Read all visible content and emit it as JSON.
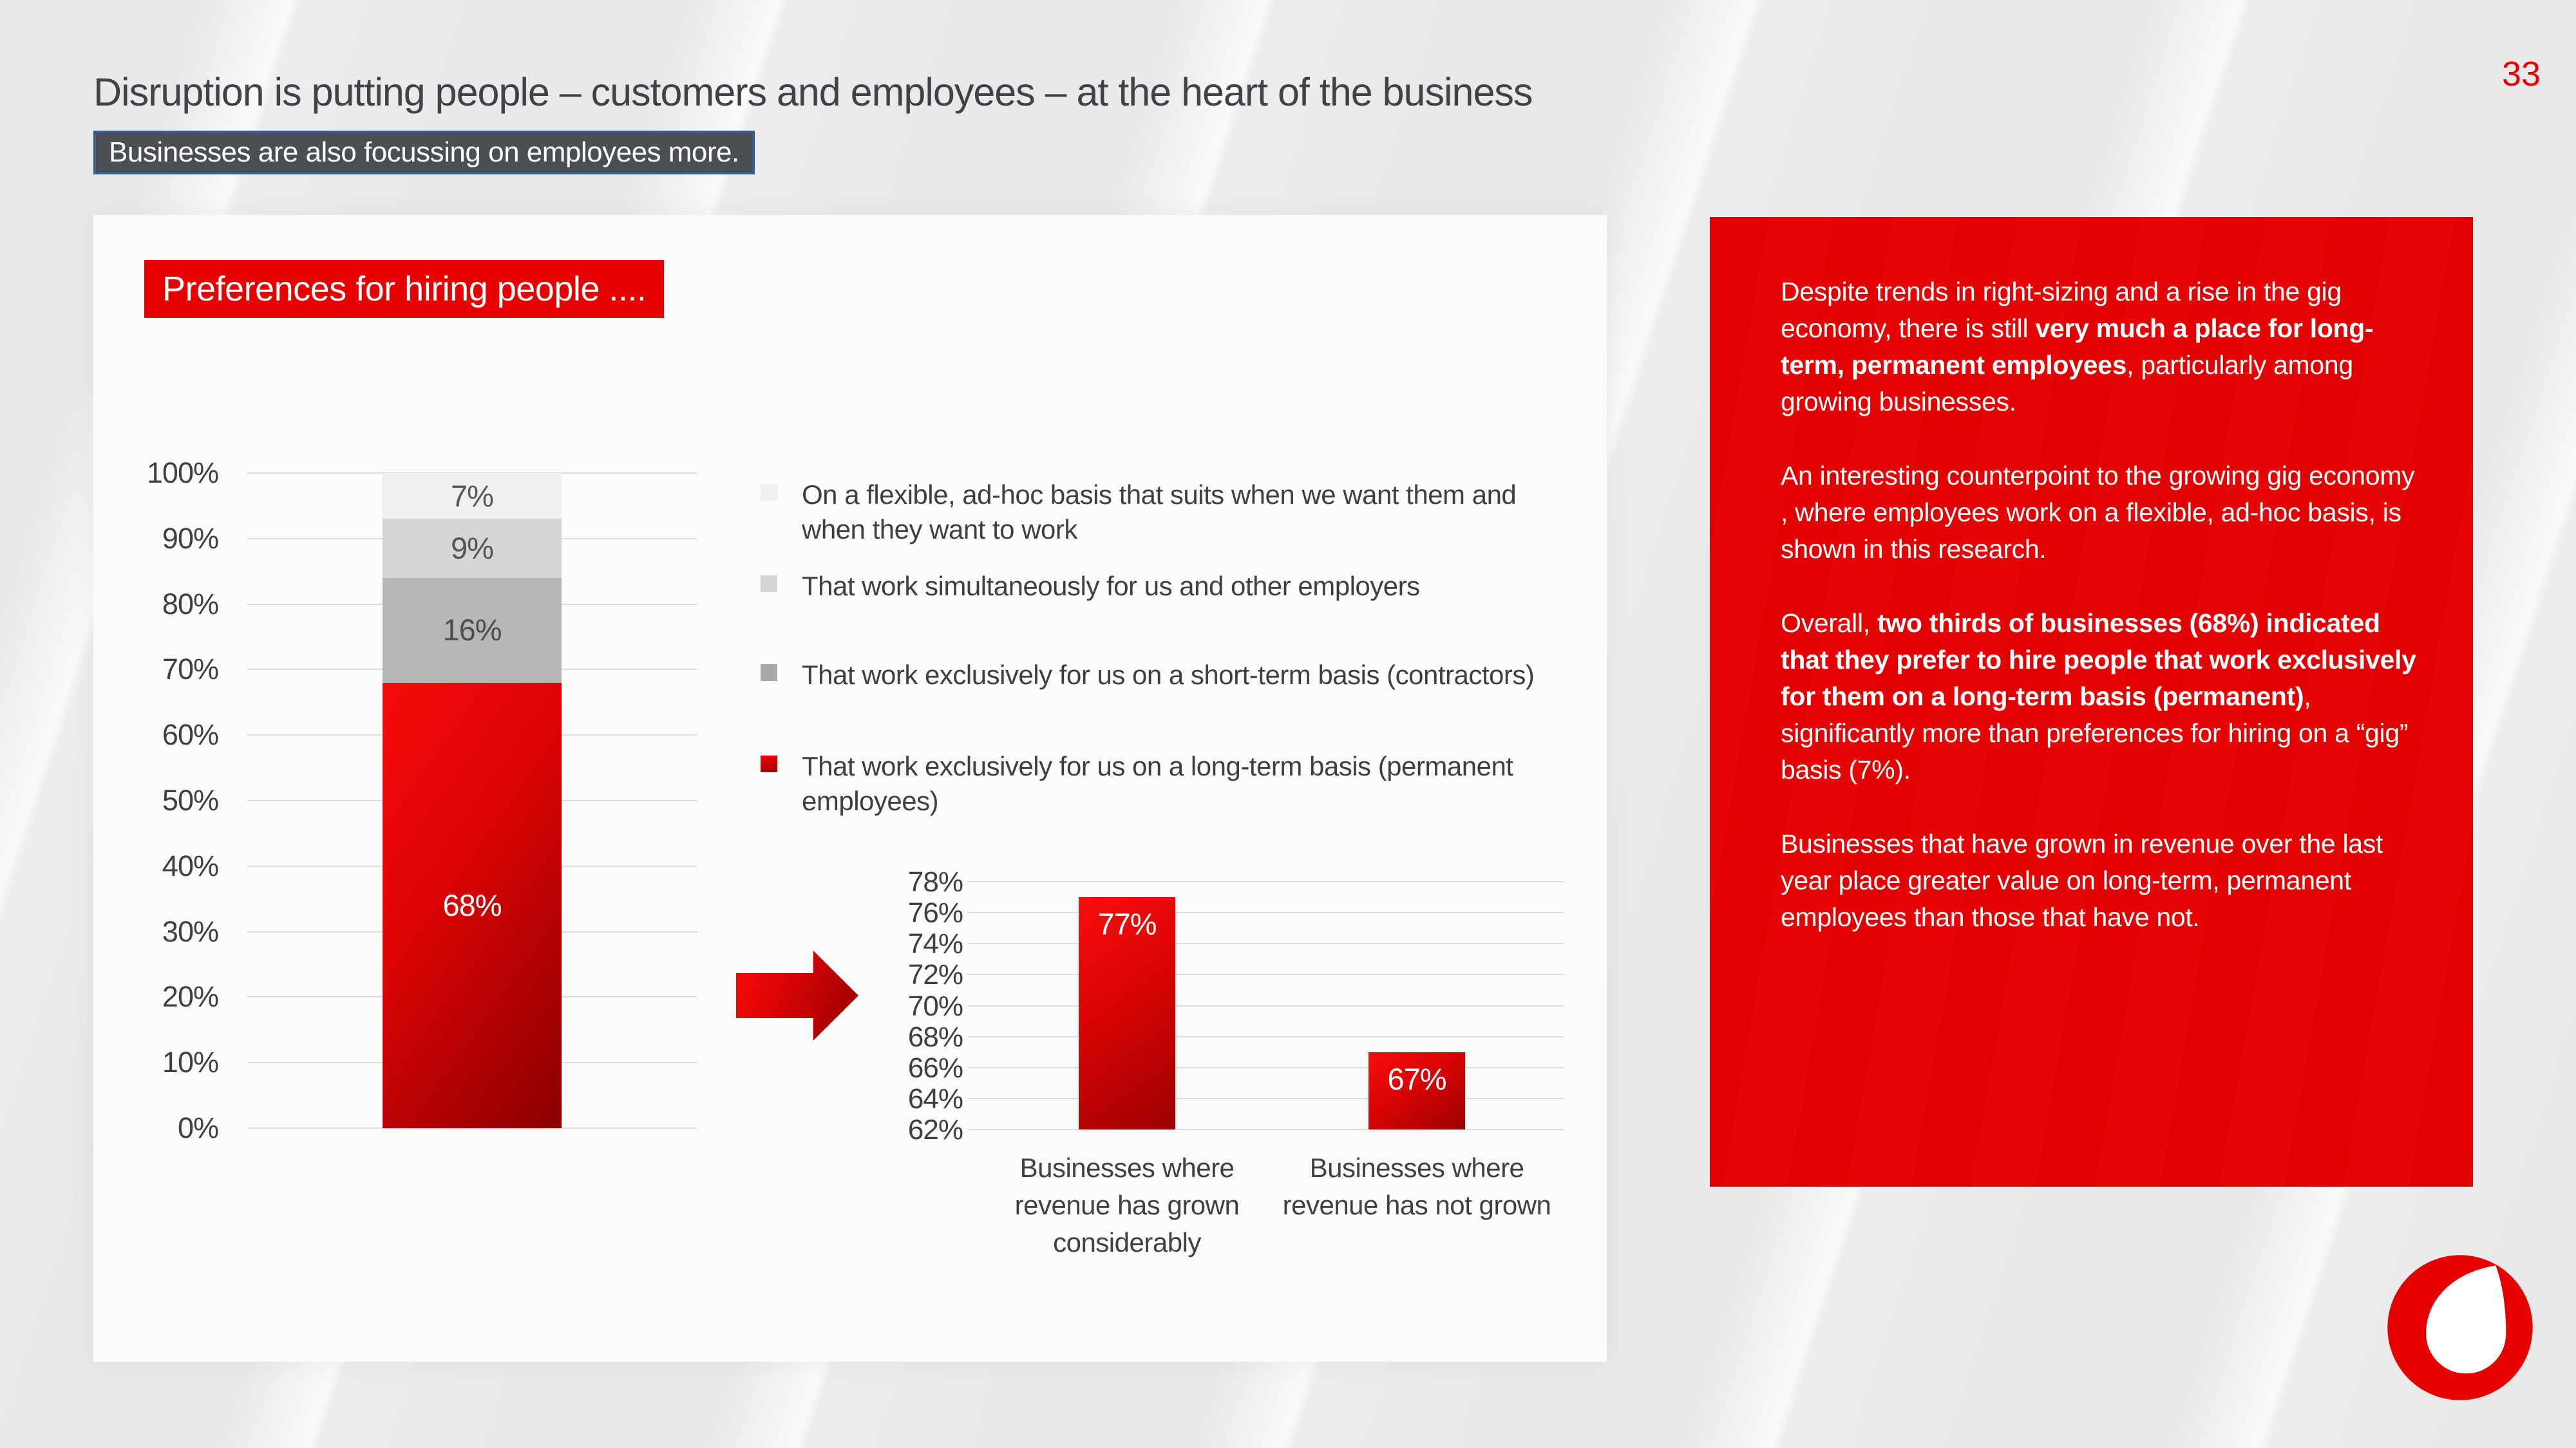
{
  "page": {
    "number": "33",
    "title": "Disruption is putting people – customers and employees – at the heart of the business",
    "subtitle": "Businesses are also focussing on employees more."
  },
  "chart_panel": {
    "badge": "Preferences for hiring people ....",
    "legend": [
      {
        "label": "On a flexible, ad-hoc basis that suits when we want them and when they want to work",
        "swatch": "#f0f0f0"
      },
      {
        "label": "That work simultaneously for us and other employers",
        "swatch": "#d6d6d6"
      },
      {
        "label": "That work exclusively for us on a short-term basis (contractors)",
        "swatch": "#a9a9a9"
      },
      {
        "label": "That work exclusively for us on a long-term basis (permanent employees)",
        "swatch": "red-gradient"
      }
    ]
  },
  "insight_panel": {
    "paragraphs": [
      [
        {
          "t": "Despite trends in right-sizing and a rise in the gig economy, there is still ",
          "b": 0
        },
        {
          "t": "very much a place for long-term, permanent employees",
          "b": 1
        },
        {
          "t": ", particularly among growing businesses.",
          "b": 0
        }
      ],
      [
        {
          "t": "An interesting counterpoint to the growing gig economy , where employees work on a flexible, ad-hoc basis, is shown in this research.",
          "b": 0
        }
      ],
      [
        {
          "t": "Overall, ",
          "b": 0
        },
        {
          "t": "two thirds of businesses (68%) indicated that they prefer to hire people that work exclusively for them on a long-term basis (permanent)",
          "b": 1
        },
        {
          "t": ", significantly more than preferences for hiring on a “gig” basis (7%).",
          "b": 0
        }
      ],
      [
        {
          "t": "Businesses that have grown in revenue over the last year place greater value on long-term, permanent employees than those that have not.",
          "b": 0
        }
      ]
    ]
  },
  "logo": {
    "name": "vodafone-speechmark"
  },
  "colors": {
    "accent": "#e60000",
    "badge_bg": "#4b4e52",
    "badge_border": "#3a5a94",
    "text_dark": "#3f3f3f",
    "grid": "#dcdcdc"
  },
  "chart_data": [
    {
      "type": "bar",
      "subtype": "100%-stacked-column",
      "title": "Preferences for hiring people ....",
      "categories": [
        ""
      ],
      "series": [
        {
          "name": "On a flexible, ad-hoc basis that suits when we want them and when they want to work",
          "values": [
            7
          ],
          "color": "#f0f0f0",
          "label": "7%",
          "label_color": "#595959"
        },
        {
          "name": "That work simultaneously for us and other employers",
          "values": [
            9
          ],
          "color": "#d6d6d6",
          "label": "9%",
          "label_color": "#555555"
        },
        {
          "name": "That work exclusively for us on a short-term basis (contractors)",
          "values": [
            16
          ],
          "color": "#b7b7b7",
          "label": "16%",
          "label_color": "#4d4d4d"
        },
        {
          "name": "That work exclusively for us on a long-term basis (permanent employees)",
          "values": [
            68
          ],
          "color": "red-gradient",
          "label": "68%",
          "label_color": "#ffffff"
        }
      ],
      "ylim": [
        0,
        100
      ],
      "ytick_labels": [
        "100%",
        "90%",
        "80%",
        "70%",
        "60%",
        "50%",
        "40%",
        "30%",
        "20%",
        "10%",
        "0%"
      ],
      "grid": true,
      "legend_position": "right"
    },
    {
      "type": "bar",
      "categories": [
        "Businesses where revenue has grown considerably",
        "Businesses where revenue has not grown"
      ],
      "values": [
        77,
        67
      ],
      "value_labels": [
        "77%",
        "67%"
      ],
      "ylim": [
        62,
        78
      ],
      "ytick_labels": [
        "78%",
        "76%",
        "74%",
        "72%",
        "70%",
        "68%",
        "66%",
        "64%",
        "62%"
      ],
      "grid": true
    }
  ]
}
